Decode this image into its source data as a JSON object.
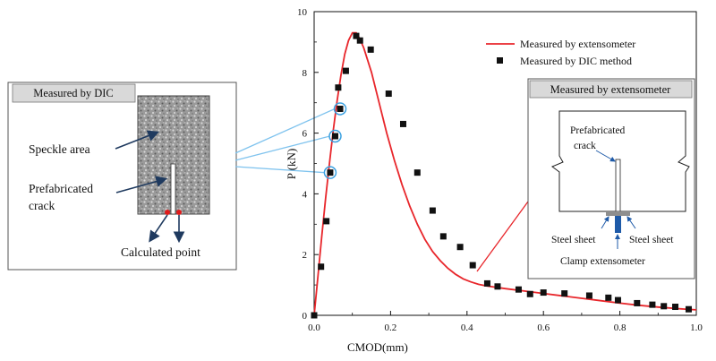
{
  "chart_data": {
    "type": "scatter",
    "xlabel": "CMOD(mm)",
    "ylabel": "P (kN)",
    "xlim": [
      0,
      1.0
    ],
    "ylim": [
      0,
      10
    ],
    "x_ticks": [
      "0.0",
      "0.2",
      "0.4",
      "0.6",
      "0.8",
      "1.0"
    ],
    "y_ticks": [
      "0",
      "2",
      "4",
      "6",
      "8",
      "10"
    ],
    "legend_placement": "top-right",
    "grid": false,
    "series": [
      {
        "name": "Measured by extensometer",
        "type": "line",
        "color": "#e8262b",
        "x": [
          0.0,
          0.01,
          0.02,
          0.03,
          0.04,
          0.05,
          0.06,
          0.07,
          0.08,
          0.09,
          0.1,
          0.11,
          0.12,
          0.13,
          0.15,
          0.17,
          0.19,
          0.21,
          0.23,
          0.25,
          0.27,
          0.29,
          0.31,
          0.33,
          0.35,
          0.37,
          0.39,
          0.41,
          0.43,
          0.45,
          0.5,
          0.55,
          0.6,
          0.65,
          0.7,
          0.75,
          0.8,
          0.85,
          0.9,
          0.95,
          1.0
        ],
        "y": [
          0.0,
          1.3,
          2.6,
          3.85,
          5.0,
          6.1,
          7.05,
          7.9,
          8.6,
          9.05,
          9.3,
          9.3,
          9.1,
          8.8,
          8.0,
          7.0,
          6.0,
          5.1,
          4.3,
          3.6,
          3.0,
          2.5,
          2.1,
          1.8,
          1.55,
          1.35,
          1.2,
          1.1,
          1.02,
          0.97,
          0.88,
          0.8,
          0.72,
          0.64,
          0.56,
          0.48,
          0.4,
          0.33,
          0.27,
          0.22,
          0.18
        ]
      },
      {
        "name": "Measured by DIC method",
        "type": "scatter",
        "color": "#111111",
        "x": [
          0.0,
          0.018,
          0.032,
          0.042,
          0.055,
          0.063,
          0.068,
          0.083,
          0.11,
          0.12,
          0.148,
          0.195,
          0.233,
          0.27,
          0.31,
          0.338,
          0.382,
          0.415,
          0.453,
          0.48,
          0.535,
          0.565,
          0.6,
          0.655,
          0.72,
          0.77,
          0.795,
          0.845,
          0.885,
          0.915,
          0.945,
          0.98
        ],
        "y": [
          0.0,
          1.6,
          3.1,
          4.7,
          5.9,
          7.5,
          6.8,
          8.05,
          9.2,
          9.05,
          8.75,
          7.3,
          6.3,
          4.7,
          3.45,
          2.6,
          2.25,
          1.65,
          1.05,
          0.95,
          0.85,
          0.7,
          0.75,
          0.72,
          0.65,
          0.58,
          0.5,
          0.4,
          0.35,
          0.3,
          0.28,
          0.2
        ]
      }
    ],
    "circled_points": [
      {
        "x": 0.042,
        "y": 4.7
      },
      {
        "x": 0.055,
        "y": 5.9
      },
      {
        "x": 0.068,
        "y": 6.8
      }
    ]
  },
  "left_panel": {
    "title": "Measured by DIC",
    "speckle_label": "Speckle area",
    "crack_label_line1": "Prefabricated",
    "crack_label_line2": "crack",
    "calc_label": "Calculated point"
  },
  "right_panel": {
    "title": "Measured by extensometer",
    "crack_label_line1": "Prefabricated",
    "crack_label_line2": "crack",
    "steel_left": "Steel sheet",
    "steel_right": "Steel sheet",
    "clamp_label": "Clamp extensometer"
  },
  "colors": {
    "curve": "#e8262b",
    "circle": "#3aa0e0",
    "connector": "#7fc3ee",
    "arrow": "#1f3a5f",
    "calc_points": "#e01b1b",
    "extensometer": "#1e5aa8",
    "steel": "#8e8e8e",
    "panel_title_bg": "#d9d9d9"
  }
}
